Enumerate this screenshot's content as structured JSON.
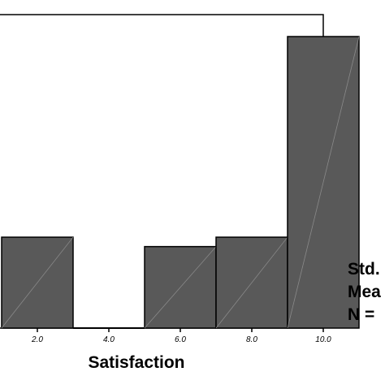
{
  "chart_data": {
    "type": "bar",
    "xlabel": "Satisfaction",
    "ylabel": "",
    "title": "",
    "bin_width": 2.0,
    "x_ticks": [
      "2.0",
      "4.0",
      "6.0",
      "8.0",
      "10.0"
    ],
    "x_tick_values": [
      2.0,
      4.0,
      6.0,
      8.0,
      10.0
    ],
    "x_range": [
      0.0,
      11.0
    ],
    "y_range": [
      0,
      1
    ],
    "bins": [
      {
        "center": 2.0,
        "value": 0.29
      },
      {
        "center": 4.0,
        "value": 0.0
      },
      {
        "center": 6.0,
        "value": 0.26
      },
      {
        "center": 8.0,
        "value": 0.29
      },
      {
        "center": 10.0,
        "value": 0.93
      }
    ],
    "bar_color": "#595959",
    "edge_color": "#000000",
    "grid": false,
    "legend": "none"
  },
  "stats_box": {
    "lines": [
      "Std.",
      "Mea",
      "N = "
    ]
  }
}
